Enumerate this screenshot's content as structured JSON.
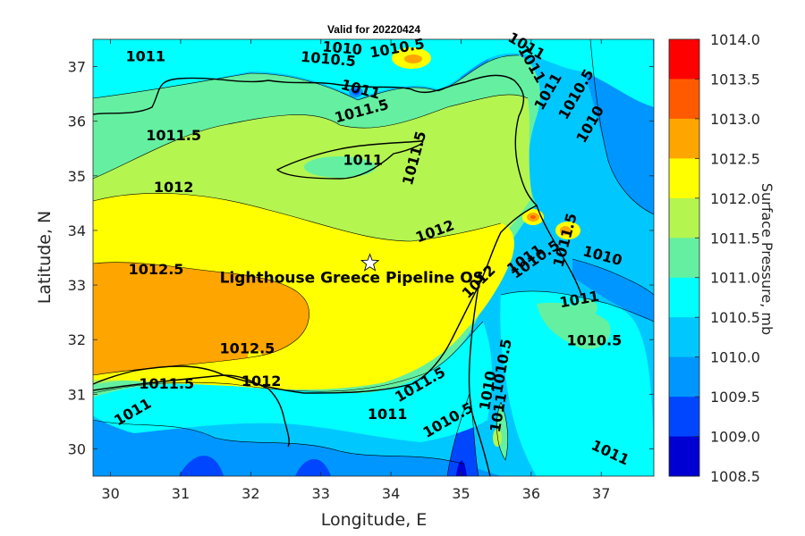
{
  "chart_data": {
    "type": "contour-map",
    "title": "Valid for 20220424",
    "xlabel": "Longitude, E",
    "ylabel": "Latitude, N",
    "xlim": [
      29.75,
      37.75
    ],
    "ylim": [
      29.5,
      37.5
    ],
    "x_ticks": [
      "30",
      "31",
      "32",
      "33",
      "34",
      "35",
      "36",
      "37"
    ],
    "y_ticks": [
      "30",
      "31",
      "32",
      "33",
      "34",
      "35",
      "36",
      "37"
    ],
    "colorbar": {
      "label": "Surface Pressure, mb",
      "ticks": [
        "1014.0",
        "1013.5",
        "1013.0",
        "1012.5",
        "1012.0",
        "1011.5",
        "1011.0",
        "1010.5",
        "1010.0",
        "1009.5",
        "1009.0",
        "1008.5"
      ],
      "colors": [
        "#ff0000",
        "#ff5a00",
        "#ffa500",
        "#ffff00",
        "#b4f550",
        "#64f0a0",
        "#00ffff",
        "#00c8ff",
        "#0096ff",
        "#0046ff",
        "#0000d2",
        "#0000a0"
      ]
    },
    "marker": {
      "label": "Lighthouse Greece Pipeline OS",
      "lon": 33.7,
      "lat": 33.4,
      "symbol": "star"
    },
    "contour_labels": [
      {
        "text": "1011",
        "lon": 30.5,
        "lat": 37.1,
        "rot": 0
      },
      {
        "text": "1010.5",
        "lon": 33.1,
        "lat": 37.05,
        "rot": 5
      },
      {
        "text": "1010",
        "lon": 33.3,
        "lat": 37.25,
        "rot": 5
      },
      {
        "text": "1010.5",
        "lon": 34.1,
        "lat": 37.25,
        "rot": -10
      },
      {
        "text": "1011",
        "lon": 35.9,
        "lat": 37.3,
        "rot": 30
      },
      {
        "text": "1011",
        "lon": 35.95,
        "lat": 37.0,
        "rot": 60
      },
      {
        "text": "1011",
        "lon": 36.3,
        "lat": 36.5,
        "rot": -60
      },
      {
        "text": "1010.5",
        "lon": 36.7,
        "lat": 36.45,
        "rot": -60
      },
      {
        "text": "1010",
        "lon": 36.9,
        "lat": 35.9,
        "rot": -60
      },
      {
        "text": "1011",
        "lon": 33.55,
        "lat": 36.5,
        "rot": 15
      },
      {
        "text": "1011.5",
        "lon": 33.6,
        "lat": 36.1,
        "rot": -15
      },
      {
        "text": "1011.5",
        "lon": 30.9,
        "lat": 35.65,
        "rot": 0
      },
      {
        "text": "1011",
        "lon": 33.6,
        "lat": 35.2,
        "rot": 0
      },
      {
        "text": "1011.5",
        "lon": 34.4,
        "lat": 35.3,
        "rot": -75
      },
      {
        "text": "1012",
        "lon": 30.9,
        "lat": 34.7,
        "rot": 0
      },
      {
        "text": "1012",
        "lon": 34.65,
        "lat": 33.9,
        "rot": -20
      },
      {
        "text": "1012.5",
        "lon": 30.65,
        "lat": 33.2,
        "rot": 0
      },
      {
        "text": "1012",
        "lon": 35.3,
        "lat": 33.0,
        "rot": -45
      },
      {
        "text": "1011",
        "lon": 35.95,
        "lat": 33.4,
        "rot": -35
      },
      {
        "text": "1010.5",
        "lon": 36.1,
        "lat": 33.4,
        "rot": -35
      },
      {
        "text": "1011.5",
        "lon": 36.55,
        "lat": 33.8,
        "rot": -75
      },
      {
        "text": "1010",
        "lon": 37.0,
        "lat": 33.45,
        "rot": 15
      },
      {
        "text": "1011",
        "lon": 36.7,
        "lat": 32.65,
        "rot": -10
      },
      {
        "text": "1010.5",
        "lon": 36.9,
        "lat": 31.9,
        "rot": 0
      },
      {
        "text": "1012.5",
        "lon": 31.95,
        "lat": 31.75,
        "rot": 0
      },
      {
        "text": "1012",
        "lon": 32.15,
        "lat": 31.15,
        "rot": 0
      },
      {
        "text": "1011.5",
        "lon": 30.8,
        "lat": 31.1,
        "rot": 0
      },
      {
        "text": "1011",
        "lon": 30.35,
        "lat": 30.6,
        "rot": -30
      },
      {
        "text": "1011.5",
        "lon": 34.45,
        "lat": 31.1,
        "rot": -30
      },
      {
        "text": "1011",
        "lon": 33.95,
        "lat": 30.55,
        "rot": 0
      },
      {
        "text": "1010.5",
        "lon": 34.85,
        "lat": 30.45,
        "rot": -30
      },
      {
        "text": "1010.5",
        "lon": 35.65,
        "lat": 31.5,
        "rot": -80
      },
      {
        "text": "1010",
        "lon": 35.45,
        "lat": 31.05,
        "rot": -80
      },
      {
        "text": "1011",
        "lon": 35.6,
        "lat": 30.65,
        "rot": -80
      },
      {
        "text": "1011",
        "lon": 37.1,
        "lat": 29.85,
        "rot": 25
      }
    ]
  }
}
